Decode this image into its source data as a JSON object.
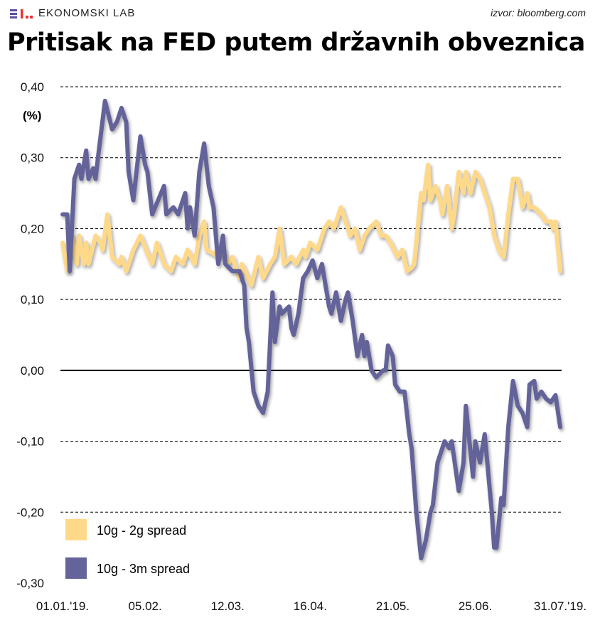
{
  "header": {
    "logo_text": "EKONOMSKI LAB",
    "source": "izvor: bloomberg.com",
    "title": "Pritisak na FED putem državnih obveznica"
  },
  "colors": {
    "yellow": "#ffd98a",
    "blue": "#64649a",
    "logo_blue": "#5a4fa0",
    "logo_red": "#e8322f"
  },
  "chart_data": {
    "type": "line",
    "title": "Pritisak na FED putem državnih obveznica",
    "ylabel": "(%)",
    "xlabel": "",
    "ylim": [
      -0.3,
      0.4
    ],
    "grid": true,
    "legend_placement": "bottom-left",
    "x_unit": "days since 01.01.'19",
    "xlim": [
      0,
      211
    ],
    "yticks": [
      {
        "v": 0.4,
        "label": "0,40"
      },
      {
        "v": 0.3,
        "label": "0,30"
      },
      {
        "v": 0.2,
        "label": "0,20"
      },
      {
        "v": 0.1,
        "label": "0,10"
      },
      {
        "v": 0.0,
        "label": "0,00"
      },
      {
        "v": -0.1,
        "label": "-0,10"
      },
      {
        "v": -0.2,
        "label": "-0,20"
      },
      {
        "v": -0.3,
        "label": "-0,30"
      }
    ],
    "xticks": [
      {
        "v": 0,
        "label": "01.01.'19."
      },
      {
        "v": 35,
        "label": "05.02."
      },
      {
        "v": 70,
        "label": "12.03."
      },
      {
        "v": 105,
        "label": "16.04."
      },
      {
        "v": 140,
        "label": "21.05."
      },
      {
        "v": 175,
        "label": "25.06."
      },
      {
        "v": 211,
        "label": "31.07.'19."
      }
    ],
    "series": [
      {
        "name": "10g - 2g spread",
        "color": "#ffd98a",
        "points": [
          [
            0,
            0.18
          ],
          [
            2,
            0.14
          ],
          [
            4,
            0.19
          ],
          [
            6,
            0.15
          ],
          [
            7,
            0.19
          ],
          [
            9,
            0.15
          ],
          [
            10,
            0.18
          ],
          [
            11,
            0.15
          ],
          [
            14,
            0.19
          ],
          [
            16,
            0.18
          ],
          [
            17,
            0.17
          ],
          [
            19,
            0.22
          ],
          [
            21,
            0.16
          ],
          [
            24,
            0.15
          ],
          [
            25,
            0.16
          ],
          [
            27,
            0.14
          ],
          [
            30,
            0.17
          ],
          [
            33,
            0.19
          ],
          [
            36,
            0.165
          ],
          [
            38,
            0.15
          ],
          [
            40,
            0.18
          ],
          [
            43,
            0.15
          ],
          [
            46,
            0.14
          ],
          [
            48,
            0.16
          ],
          [
            51,
            0.15
          ],
          [
            53,
            0.17
          ],
          [
            56,
            0.15
          ],
          [
            58,
            0.19
          ],
          [
            60,
            0.21
          ],
          [
            61,
            0.17
          ],
          [
            64,
            0.165
          ],
          [
            66,
            0.16
          ],
          [
            68,
            0.17
          ],
          [
            70,
            0.15
          ],
          [
            72,
            0.16
          ],
          [
            75,
            0.13
          ],
          [
            76,
            0.15
          ],
          [
            80,
            0.12
          ],
          [
            83,
            0.16
          ],
          [
            85,
            0.13
          ],
          [
            88,
            0.15
          ],
          [
            90,
            0.16
          ],
          [
            92,
            0.2
          ],
          [
            94,
            0.15
          ],
          [
            97,
            0.16
          ],
          [
            99,
            0.15
          ],
          [
            102,
            0.17
          ],
          [
            103,
            0.16
          ],
          [
            105,
            0.18
          ],
          [
            108,
            0.17
          ],
          [
            111,
            0.2
          ],
          [
            113,
            0.21
          ],
          [
            115,
            0.2
          ],
          [
            118,
            0.23
          ],
          [
            120,
            0.21
          ],
          [
            122,
            0.19
          ],
          [
            124,
            0.2
          ],
          [
            126,
            0.17
          ],
          [
            128,
            0.19
          ],
          [
            130,
            0.2
          ],
          [
            133,
            0.21
          ],
          [
            135,
            0.19
          ],
          [
            137,
            0.19
          ],
          [
            139,
            0.18
          ],
          [
            142,
            0.16
          ],
          [
            144,
            0.17
          ],
          [
            146,
            0.14
          ],
          [
            148,
            0.145
          ],
          [
            149,
            0.15
          ],
          [
            150,
            0.18
          ],
          [
            152,
            0.25
          ],
          [
            153,
            0.24
          ],
          [
            155,
            0.29
          ],
          [
            156,
            0.24
          ],
          [
            158,
            0.26
          ],
          [
            160,
            0.24
          ],
          [
            161,
            0.22
          ],
          [
            163,
            0.26
          ],
          [
            165,
            0.2
          ],
          [
            166,
            0.22
          ],
          [
            168,
            0.28
          ],
          [
            170,
            0.25
          ],
          [
            171,
            0.28
          ],
          [
            173,
            0.25
          ],
          [
            175,
            0.28
          ],
          [
            177,
            0.27
          ],
          [
            179,
            0.25
          ],
          [
            181,
            0.23
          ],
          [
            183,
            0.19
          ],
          [
            185,
            0.17
          ],
          [
            187,
            0.16
          ],
          [
            189,
            0.22
          ],
          [
            191,
            0.27
          ],
          [
            193,
            0.27
          ],
          [
            195,
            0.23
          ],
          [
            197,
            0.25
          ],
          [
            198,
            0.23
          ],
          [
            200,
            0.23
          ],
          [
            203,
            0.22
          ],
          [
            205,
            0.21
          ],
          [
            207,
            0.21
          ],
          [
            208,
            0.2
          ],
          [
            209,
            0.21
          ],
          [
            211,
            0.14
          ]
        ]
      },
      {
        "name": "10g - 3m spread",
        "color": "#64649a",
        "points": [
          [
            0,
            0.22
          ],
          [
            2,
            0.22
          ],
          [
            3,
            0.14
          ],
          [
            5,
            0.27
          ],
          [
            7,
            0.29
          ],
          [
            8,
            0.27
          ],
          [
            10,
            0.31
          ],
          [
            11,
            0.27
          ],
          [
            13,
            0.285
          ],
          [
            14,
            0.27
          ],
          [
            15,
            0.3
          ],
          [
            18,
            0.38
          ],
          [
            21,
            0.34
          ],
          [
            23,
            0.35
          ],
          [
            25,
            0.37
          ],
          [
            27,
            0.35
          ],
          [
            28,
            0.28
          ],
          [
            30,
            0.24
          ],
          [
            32,
            0.3
          ],
          [
            33,
            0.33
          ],
          [
            35,
            0.29
          ],
          [
            36,
            0.28
          ],
          [
            38,
            0.22
          ],
          [
            43,
            0.26
          ],
          [
            44,
            0.22
          ],
          [
            47,
            0.23
          ],
          [
            49,
            0.22
          ],
          [
            52,
            0.25
          ],
          [
            53,
            0.2
          ],
          [
            54,
            0.23
          ],
          [
            56,
            0.19
          ],
          [
            58,
            0.28
          ],
          [
            60,
            0.32
          ],
          [
            62,
            0.26
          ],
          [
            64,
            0.23
          ],
          [
            66,
            0.15
          ],
          [
            68,
            0.19
          ],
          [
            69,
            0.15
          ],
          [
            72,
            0.14
          ],
          [
            75,
            0.14
          ],
          [
            77,
            0.12
          ],
          [
            78,
            0.06
          ],
          [
            79,
            0.04
          ],
          [
            81,
            -0.03
          ],
          [
            83,
            -0.05
          ],
          [
            85,
            -0.06
          ],
          [
            87,
            -0.03
          ],
          [
            89,
            0.11
          ],
          [
            90,
            0.04
          ],
          [
            92,
            0.09
          ],
          [
            93,
            0.08
          ],
          [
            96,
            0.09
          ],
          [
            97,
            0.06
          ],
          [
            98,
            0.05
          ],
          [
            100,
            0.08
          ],
          [
            102,
            0.13
          ],
          [
            104,
            0.14
          ],
          [
            106,
            0.155
          ],
          [
            108,
            0.13
          ],
          [
            110,
            0.15
          ],
          [
            113,
            0.09
          ],
          [
            114,
            0.08
          ],
          [
            116,
            0.11
          ],
          [
            118,
            0.07
          ],
          [
            120,
            0.1
          ],
          [
            121,
            0.11
          ],
          [
            123,
            0.07
          ],
          [
            125,
            0.02
          ],
          [
            127,
            0.05
          ],
          [
            128,
            0.02
          ],
          [
            129,
            0.04
          ],
          [
            131,
            0.0
          ],
          [
            133,
            -0.01
          ],
          [
            136,
            0.0
          ],
          [
            137,
            0.0
          ],
          [
            138,
            0.035
          ],
          [
            140,
            0.02
          ],
          [
            141,
            -0.02
          ],
          [
            143,
            -0.03
          ],
          [
            145,
            -0.03
          ],
          [
            147,
            -0.09
          ],
          [
            148,
            -0.11
          ],
          [
            150,
            -0.2
          ],
          [
            152,
            -0.265
          ],
          [
            154,
            -0.24
          ],
          [
            156,
            -0.2
          ],
          [
            157,
            -0.19
          ],
          [
            159,
            -0.13
          ],
          [
            161,
            -0.11
          ],
          [
            162,
            -0.1
          ],
          [
            164,
            -0.11
          ],
          [
            165,
            -0.1
          ],
          [
            168,
            -0.17
          ],
          [
            170,
            -0.13
          ],
          [
            171,
            -0.05
          ],
          [
            174,
            -0.15
          ],
          [
            175,
            -0.1
          ],
          [
            177,
            -0.13
          ],
          [
            179,
            -0.09
          ],
          [
            182,
            -0.2
          ],
          [
            183,
            -0.25
          ],
          [
            184,
            -0.25
          ],
          [
            186,
            -0.18
          ],
          [
            187,
            -0.19
          ],
          [
            189,
            -0.08
          ],
          [
            191,
            -0.015
          ],
          [
            193,
            -0.05
          ],
          [
            195,
            -0.06
          ],
          [
            197,
            -0.08
          ],
          [
            198,
            -0.02
          ],
          [
            200,
            -0.015
          ],
          [
            201,
            -0.04
          ],
          [
            203,
            -0.03
          ],
          [
            205,
            -0.04
          ],
          [
            207,
            -0.045
          ],
          [
            209,
            -0.035
          ],
          [
            211,
            -0.08
          ]
        ]
      }
    ]
  }
}
